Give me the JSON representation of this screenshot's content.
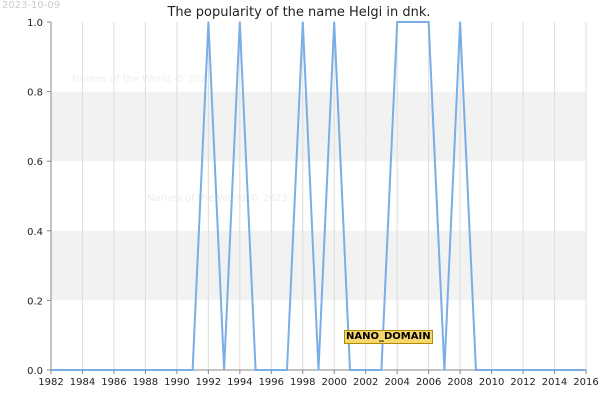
{
  "date_stamp": "2023-10-09",
  "watermark": "Names of the World © 2023",
  "badge": "NANO_DOMAIN",
  "colors": {
    "line": "#7aaee6",
    "band": "#f2f2f2",
    "grid": "#dddddd",
    "axis": "#888888"
  },
  "chart_data": {
    "type": "line",
    "title": "The popularity of the name Helgi in dnk.",
    "xlabel": "",
    "ylabel": "",
    "xlim": [
      1982,
      2016
    ],
    "ylim": [
      0,
      1
    ],
    "x_ticks": [
      1982,
      1984,
      1986,
      1988,
      1990,
      1992,
      1994,
      1996,
      1998,
      2000,
      2002,
      2004,
      2006,
      2008,
      2010,
      2012,
      2014,
      2016
    ],
    "y_ticks": [
      "0.0",
      "0.2",
      "0.4",
      "0.6",
      "0.8",
      "1.0"
    ],
    "grid": true,
    "series": [
      {
        "x": [
          1982,
          1983,
          1984,
          1985,
          1986,
          1987,
          1988,
          1989,
          1990,
          1991,
          1992,
          1993,
          1994,
          1995,
          1996,
          1997,
          1998,
          1999,
          2000,
          2001,
          2002,
          2003,
          2004,
          2005,
          2006,
          2007,
          2008,
          2009,
          2010,
          2011,
          2012,
          2013,
          2014,
          2015,
          2016
        ],
        "values": [
          0,
          0,
          0,
          0,
          0,
          0,
          0,
          0,
          0,
          0,
          1,
          0,
          1,
          0,
          0,
          0,
          1,
          0,
          1,
          0,
          0,
          0,
          1,
          1,
          1,
          0,
          1,
          0,
          0,
          0,
          0,
          0,
          0,
          0,
          0
        ]
      }
    ]
  }
}
